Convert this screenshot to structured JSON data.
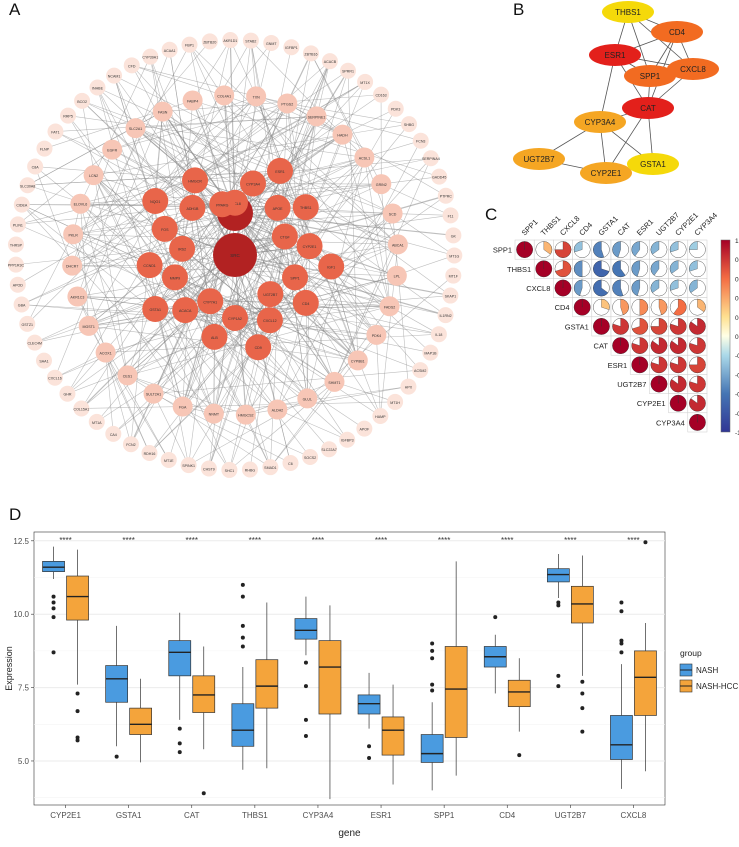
{
  "panels": {
    "a": "A",
    "b": "B",
    "c": "C",
    "d": "D"
  },
  "colors": {
    "node_dark": "#b22222",
    "node_mid": "#e8654a",
    "node_light": "#f7c6b6",
    "node_pale": "#fbe3da",
    "edge": "#888888",
    "nash": "#4a9be0",
    "nash_hcc": "#f4a43b",
    "hub_b_dark": "#e3201b",
    "hub_b_mid": "#f26b21",
    "hub_b_light": "#f5a623",
    "hub_b_yellow": "#f5d90a"
  },
  "network_a": {
    "core": [
      "CAT",
      "SRC"
    ],
    "inner": [
      "CXCL8",
      "CYP3A4",
      "ESR1",
      "APOE",
      "THBS1",
      "CTGF",
      "CYP2E1",
      "IGF1",
      "SPP1",
      "CD4",
      "UGT2B7",
      "CXCL12",
      "CD9",
      "CYP1A2",
      "ALB",
      "CYP7A1",
      "ACACA",
      "GSTA1",
      "MMP9",
      "CCND1",
      "IRS2",
      "FOS",
      "NQO1",
      "ADH1B",
      "HMGCR",
      "PPARG"
    ],
    "middle": [
      "TXN",
      "PTGS2",
      "SERPINE1",
      "HADH",
      "ACSL1",
      "GRIN2",
      "SCD",
      "ABCA1",
      "LPL",
      "FADS2",
      "PDK4",
      "CYP8B1",
      "SHMT1",
      "GLUL",
      "ALDH2",
      "HMGCS2",
      "NNMT",
      "FGA",
      "SULT2A1",
      "CES1",
      "ACOX1",
      "MGST1",
      "AKR1C3",
      "DHCR7",
      "PKLR",
      "ELOVL6",
      "LCN2",
      "EGFR",
      "SLC2A1",
      "FASN",
      "FABP4",
      "COL4A1"
    ],
    "outer": [
      "IGFBP1",
      "ZBTB16",
      "ACACB",
      "SPRR1",
      "MT1X",
      "CD163",
      "PDK3",
      "SHBG",
      "FCN3",
      "SERPINA4",
      "GADD45",
      "PTPRC",
      "F11",
      "GK",
      "MT1G",
      "MT1F",
      "SKAP1",
      "IL1RN2",
      "IL18",
      "MAP1B",
      "ACSM2",
      "HPX",
      "MT1H",
      "HAMP",
      "APOF",
      "IGFBP3",
      "SLC22A7",
      "SOCS2",
      "C6",
      "SMAD1",
      "RHBG",
      "SHC1",
      "CHST9",
      "SPINK1",
      "MT1E",
      "RDH16",
      "FCN2",
      "CA4",
      "MT1A",
      "COL15A1",
      "GHR",
      "CXCL16",
      "SAA1",
      "CLEC4M",
      "GSTZ1",
      "GBA",
      "APOD",
      "PPP1R3C",
      "THRSP",
      "PLIN1",
      "CIDEA",
      "SLC30A8",
      "C8A",
      "FLNP",
      "FAT1",
      "RRP5",
      "BCO2",
      "INHBE",
      "NCAM1",
      "CFD",
      "CYP39A1",
      "ACAA1",
      "FBP1",
      "ZBTB20",
      "AKR1D1",
      "STAB2",
      "GNMT"
    ]
  },
  "network_b": {
    "nodes": [
      {
        "id": "THBS1",
        "color": "yellow"
      },
      {
        "id": "CD4",
        "color": "mid"
      },
      {
        "id": "ESR1",
        "color": "dark"
      },
      {
        "id": "SPP1",
        "color": "mid"
      },
      {
        "id": "CXCL8",
        "color": "mid"
      },
      {
        "id": "CAT",
        "color": "dark"
      },
      {
        "id": "CYP3A4",
        "color": "light"
      },
      {
        "id": "UGT2B7",
        "color": "light"
      },
      {
        "id": "CYP2E1",
        "color": "light"
      },
      {
        "id": "GSTA1",
        "color": "yellow"
      }
    ],
    "edges": [
      [
        "THBS1",
        "CD4"
      ],
      [
        "THBS1",
        "ESR1"
      ],
      [
        "THBS1",
        "SPP1"
      ],
      [
        "THBS1",
        "CXCL8"
      ],
      [
        "CD4",
        "ESR1"
      ],
      [
        "CD4",
        "SPP1"
      ],
      [
        "CD4",
        "CXCL8"
      ],
      [
        "CD4",
        "CAT"
      ],
      [
        "ESR1",
        "SPP1"
      ],
      [
        "ESR1",
        "CXCL8"
      ],
      [
        "ESR1",
        "CAT"
      ],
      [
        "ESR1",
        "CYP3A4"
      ],
      [
        "SPP1",
        "CXCL8"
      ],
      [
        "SPP1",
        "CAT"
      ],
      [
        "CXCL8",
        "CAT"
      ],
      [
        "CAT",
        "CYP3A4"
      ],
      [
        "CAT",
        "CYP2E1"
      ],
      [
        "CAT",
        "GSTA1"
      ],
      [
        "CYP3A4",
        "UGT2B7"
      ],
      [
        "CYP3A4",
        "CYP2E1"
      ],
      [
        "CYP3A4",
        "GSTA1"
      ],
      [
        "UGT2B7",
        "CYP2E1"
      ],
      [
        "CYP2E1",
        "GSTA1"
      ]
    ]
  },
  "correlation": {
    "genes": [
      "SPP1",
      "THBS1",
      "CXCL8",
      "CD4",
      "GSTA1",
      "CAT",
      "ESR1",
      "UGT2B7",
      "CYP2E1",
      "CYP3A4"
    ],
    "matrix": [
      [
        1,
        0.35,
        0.75,
        -0.3,
        -0.55,
        -0.45,
        -0.4,
        -0.35,
        -0.3,
        -0.25
      ],
      [
        0.35,
        1,
        0.7,
        -0.5,
        -0.7,
        -0.6,
        -0.45,
        -0.4,
        -0.35,
        -0.3
      ],
      [
        0.75,
        0.7,
        1,
        -0.45,
        -0.65,
        -0.55,
        -0.45,
        -0.35,
        -0.3,
        -0.35
      ],
      [
        -0.3,
        -0.5,
        -0.45,
        1,
        0.3,
        0.45,
        0.5,
        0.45,
        0.6,
        0.35
      ],
      [
        -0.55,
        -0.7,
        -0.65,
        0.3,
        1,
        0.8,
        0.7,
        0.75,
        0.8,
        0.85
      ],
      [
        -0.45,
        -0.6,
        -0.55,
        0.45,
        0.8,
        1,
        0.8,
        0.85,
        0.85,
        0.8
      ],
      [
        -0.4,
        -0.45,
        -0.45,
        0.5,
        0.7,
        0.8,
        1,
        0.8,
        0.8,
        0.75
      ],
      [
        -0.35,
        -0.4,
        -0.35,
        0.45,
        0.75,
        0.85,
        0.8,
        1,
        0.85,
        0.8
      ],
      [
        -0.3,
        -0.35,
        -0.3,
        0.6,
        0.8,
        0.85,
        0.8,
        0.85,
        1,
        0.85
      ],
      [
        -0.25,
        -0.3,
        -0.35,
        0.35,
        0.85,
        0.8,
        0.75,
        0.8,
        0.85,
        1
      ]
    ],
    "scale_ticks": [
      "1",
      "0.8",
      "0.6",
      "0.4",
      "0.2",
      "0",
      "-0.2",
      "-0.4",
      "-0.6",
      "-0.8",
      "-1"
    ]
  },
  "chart_data": {
    "type": "box",
    "xlabel": "gene",
    "ylabel": "Expression",
    "ylim": [
      3.5,
      12.8
    ],
    "yticks": [
      5.0,
      7.5,
      10.0,
      12.5
    ],
    "ytick_labels": [
      "5.0",
      "7.5",
      "10.0",
      "12.5"
    ],
    "categories": [
      "CYP2E1",
      "GSTA1",
      "CAT",
      "THBS1",
      "CYP3A4",
      "ESR1",
      "SPP1",
      "CD4",
      "UGT2B7",
      "CXCL8"
    ],
    "significance": [
      "****",
      "****",
      "****",
      "****",
      "****",
      "****",
      "****",
      "****",
      "****",
      "****"
    ],
    "legend_title": "group",
    "legend_position": "right",
    "series": [
      {
        "name": "NASH",
        "color": "#4a9be0",
        "boxes": [
          {
            "min": 11.2,
            "q1": 11.45,
            "median": 11.6,
            "q3": 11.8,
            "max": 12.3,
            "outliers": [
              10.6,
              10.4,
              10.2,
              9.9,
              8.7
            ]
          },
          {
            "min": 5.5,
            "q1": 7.0,
            "median": 7.8,
            "q3": 8.25,
            "max": 9.6,
            "outliers": [
              5.15
            ]
          },
          {
            "min": 6.4,
            "q1": 7.9,
            "median": 8.7,
            "q3": 9.1,
            "max": 10.05,
            "outliers": [
              6.1,
              5.6,
              5.3
            ]
          },
          {
            "min": 4.7,
            "q1": 5.5,
            "median": 6.05,
            "q3": 6.95,
            "max": 8.2,
            "outliers": [
              11.0,
              10.6,
              9.6,
              9.2,
              8.9
            ]
          },
          {
            "min": 8.6,
            "q1": 9.15,
            "median": 9.45,
            "q3": 9.85,
            "max": 10.6,
            "outliers": [
              8.35,
              7.55,
              6.4,
              5.85
            ]
          },
          {
            "min": 6.1,
            "q1": 6.6,
            "median": 6.95,
            "q3": 7.25,
            "max": 8.0,
            "outliers": [
              5.5,
              5.1
            ]
          },
          {
            "min": 4.0,
            "q1": 4.95,
            "median": 5.25,
            "q3": 5.9,
            "max": 7.0,
            "outliers": [
              9.0,
              8.75,
              8.5,
              7.6,
              7.4
            ]
          },
          {
            "min": 7.3,
            "q1": 8.2,
            "median": 8.55,
            "q3": 8.9,
            "max": 9.3,
            "outliers": [
              9.9
            ]
          },
          {
            "min": 10.55,
            "q1": 11.1,
            "median": 11.35,
            "q3": 11.55,
            "max": 12.05,
            "outliers": [
              10.4,
              10.3,
              7.9,
              7.55
            ]
          },
          {
            "min": 4.05,
            "q1": 5.05,
            "median": 5.55,
            "q3": 6.55,
            "max": 8.3,
            "outliers": [
              10.4,
              10.1,
              9.1,
              9.0,
              8.7
            ]
          }
        ]
      },
      {
        "name": "NASH-HCC",
        "color": "#f4a43b",
        "boxes": [
          {
            "min": 7.6,
            "q1": 9.8,
            "median": 10.6,
            "q3": 11.3,
            "max": 12.2,
            "outliers": [
              7.3,
              6.7,
              5.8,
              5.7
            ]
          },
          {
            "min": 4.95,
            "q1": 5.9,
            "median": 6.25,
            "q3": 6.8,
            "max": 7.8,
            "outliers": []
          },
          {
            "min": 5.4,
            "q1": 6.65,
            "median": 7.25,
            "q3": 7.9,
            "max": 8.9,
            "outliers": [
              3.9
            ]
          },
          {
            "min": 4.75,
            "q1": 6.8,
            "median": 7.55,
            "q3": 8.45,
            "max": 10.4,
            "outliers": []
          },
          {
            "min": 3.7,
            "q1": 6.6,
            "median": 8.2,
            "q3": 9.1,
            "max": 10.3,
            "outliers": []
          },
          {
            "min": 4.2,
            "q1": 5.2,
            "median": 6.05,
            "q3": 6.5,
            "max": 7.6,
            "outliers": []
          },
          {
            "min": 4.5,
            "q1": 5.8,
            "median": 7.45,
            "q3": 8.9,
            "max": 11.8,
            "outliers": []
          },
          {
            "min": 6.0,
            "q1": 6.85,
            "median": 7.35,
            "q3": 7.75,
            "max": 8.5,
            "outliers": [
              5.2
            ]
          },
          {
            "min": 7.9,
            "q1": 9.7,
            "median": 10.35,
            "q3": 10.95,
            "max": 12.0,
            "outliers": [
              7.7,
              7.3,
              6.8,
              6.0
            ]
          },
          {
            "min": 4.65,
            "q1": 6.55,
            "median": 7.85,
            "q3": 8.75,
            "max": 9.7,
            "outliers": [
              12.45
            ]
          }
        ]
      }
    ]
  }
}
